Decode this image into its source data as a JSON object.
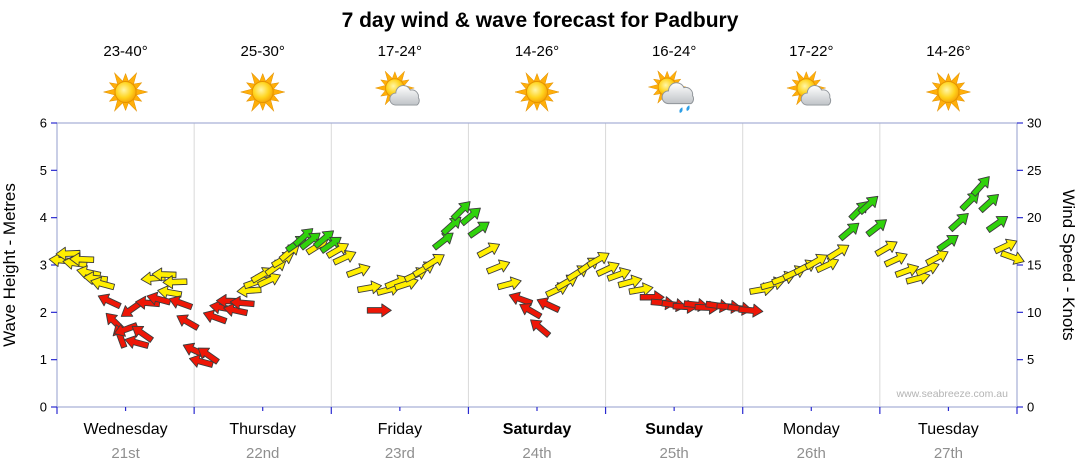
{
  "title": "7 day wind & wave forecast for Padbury",
  "watermark": "www.seabreeze.com.au",
  "days": [
    {
      "name": "Wednesday",
      "date": "21st",
      "temp": "23-40°",
      "icon": "sunny",
      "weekend": false
    },
    {
      "name": "Thursday",
      "date": "22nd",
      "temp": "25-30°",
      "icon": "sunny",
      "weekend": false
    },
    {
      "name": "Friday",
      "date": "23rd",
      "temp": "17-24°",
      "icon": "partly-cloudy",
      "weekend": false
    },
    {
      "name": "Saturday",
      "date": "24th",
      "temp": "14-26°",
      "icon": "sunny",
      "weekend": true
    },
    {
      "name": "Sunday",
      "date": "25th",
      "temp": "16-24°",
      "icon": "showers",
      "weekend": true
    },
    {
      "name": "Monday",
      "date": "26th",
      "temp": "17-22°",
      "icon": "partly-cloudy",
      "weekend": false
    },
    {
      "name": "Tuesday",
      "date": "27th",
      "temp": "14-26°",
      "icon": "sunny",
      "weekend": false
    }
  ],
  "chart_data": {
    "type": "scatter",
    "title": "7 day wind & wave forecast for Padbury",
    "x_categories": [
      "Wednesday 21st",
      "Thursday 22nd",
      "Friday 23rd",
      "Saturday 24th",
      "Sunday 25th",
      "Monday 26th",
      "Tuesday 27th"
    ],
    "y_left": {
      "label": "Wave Height - Metres",
      "range": [
        0,
        6
      ],
      "ticks": [
        0,
        1,
        2,
        3,
        4,
        5,
        6
      ]
    },
    "y_right": {
      "label": "Wind Speed - Knots",
      "range": [
        0,
        30
      ],
      "ticks": [
        0,
        5,
        10,
        15,
        20,
        25,
        30
      ]
    },
    "color_rules": {
      "red_max_knots": 11.9,
      "yellow_max_knots": 17.1,
      "red": "#ee1606",
      "yellow": "#ffee00",
      "green": "#30d20c",
      "outline": "#3c3c3c"
    },
    "series": [
      {
        "name": "Wind speed & direction arrows",
        "fields": [
          "day_offset",
          "knots",
          "arrow_rotation_deg"
        ],
        "points": [
          [
            0.03,
            15.5,
            185
          ],
          [
            0.08,
            16.2,
            178
          ],
          [
            0.13,
            15.2,
            188
          ],
          [
            0.18,
            15.6,
            182
          ],
          [
            0.23,
            14.2,
            192
          ],
          [
            0.28,
            13.6,
            186
          ],
          [
            0.33,
            13.0,
            195
          ],
          [
            0.38,
            11.2,
            205
          ],
          [
            0.42,
            9.0,
            225
          ],
          [
            0.46,
            7.5,
            250
          ],
          [
            0.5,
            8.2,
            160
          ],
          [
            0.54,
            10.3,
            145
          ],
          [
            0.58,
            6.8,
            195
          ],
          [
            0.62,
            7.8,
            215
          ],
          [
            0.66,
            11.0,
            185
          ],
          [
            0.7,
            13.6,
            175
          ],
          [
            0.74,
            11.4,
            195
          ],
          [
            0.78,
            14.0,
            182
          ],
          [
            0.82,
            12.1,
            190
          ],
          [
            0.86,
            13.2,
            178
          ],
          [
            0.9,
            11.0,
            200
          ],
          [
            0.95,
            9.0,
            210
          ],
          [
            1.0,
            6.0,
            205
          ],
          [
            1.05,
            4.8,
            195
          ],
          [
            1.1,
            5.5,
            215
          ],
          [
            1.15,
            9.5,
            200
          ],
          [
            1.2,
            10.5,
            190
          ],
          [
            1.25,
            11.2,
            182
          ],
          [
            1.3,
            10.2,
            192
          ],
          [
            1.35,
            11.0,
            185
          ],
          [
            1.4,
            12.3,
            176
          ],
          [
            1.45,
            13.2,
            340
          ],
          [
            1.5,
            14.0,
            330
          ],
          [
            1.55,
            13.4,
            335
          ],
          [
            1.6,
            14.8,
            325
          ],
          [
            1.65,
            15.6,
            330
          ],
          [
            1.7,
            16.4,
            320
          ],
          [
            1.75,
            17.3,
            325
          ],
          [
            1.8,
            18.0,
            318
          ],
          [
            1.85,
            17.6,
            322
          ],
          [
            1.9,
            17.0,
            328
          ],
          [
            1.95,
            17.8,
            320
          ],
          [
            2.0,
            17.2,
            325
          ],
          [
            2.05,
            16.6,
            330
          ],
          [
            2.1,
            15.8,
            335
          ],
          [
            2.2,
            14.4,
            340
          ],
          [
            2.28,
            12.6,
            350
          ],
          [
            2.35,
            10.2,
            0
          ],
          [
            2.42,
            12.4,
            345
          ],
          [
            2.48,
            13.2,
            338
          ],
          [
            2.55,
            13.0,
            342
          ],
          [
            2.62,
            14.0,
            335
          ],
          [
            2.68,
            14.6,
            330
          ],
          [
            2.75,
            15.4,
            328
          ],
          [
            2.82,
            17.6,
            322
          ],
          [
            2.88,
            19.2,
            318
          ],
          [
            2.95,
            20.8,
            315
          ],
          [
            3.02,
            20.2,
            320
          ],
          [
            3.08,
            18.8,
            325
          ],
          [
            3.15,
            16.6,
            332
          ],
          [
            3.22,
            14.8,
            338
          ],
          [
            3.3,
            13.0,
            345
          ],
          [
            3.38,
            11.4,
            200
          ],
          [
            3.45,
            10.2,
            210
          ],
          [
            3.52,
            8.4,
            220
          ],
          [
            3.58,
            10.8,
            205
          ],
          [
            3.65,
            12.4,
            335
          ],
          [
            3.72,
            13.2,
            330
          ],
          [
            3.8,
            14.2,
            328
          ],
          [
            3.88,
            15.0,
            325
          ],
          [
            3.95,
            15.6,
            330
          ],
          [
            4.02,
            14.6,
            335
          ],
          [
            4.1,
            14.0,
            340
          ],
          [
            4.18,
            13.2,
            345
          ],
          [
            4.26,
            12.4,
            350
          ],
          [
            4.34,
            11.6,
            0
          ],
          [
            4.42,
            11.0,
            5
          ],
          [
            4.5,
            10.8,
            8
          ],
          [
            4.58,
            10.6,
            3
          ],
          [
            4.66,
            10.8,
            6
          ],
          [
            4.74,
            10.5,
            2
          ],
          [
            4.82,
            10.7,
            8
          ],
          [
            4.9,
            10.6,
            4
          ],
          [
            4.98,
            10.4,
            7
          ],
          [
            5.06,
            10.2,
            5
          ],
          [
            5.14,
            12.4,
            350
          ],
          [
            5.22,
            13.0,
            345
          ],
          [
            5.3,
            13.6,
            340
          ],
          [
            5.38,
            14.2,
            335
          ],
          [
            5.46,
            14.8,
            332
          ],
          [
            5.54,
            15.4,
            330
          ],
          [
            5.62,
            15.0,
            335
          ],
          [
            5.7,
            16.4,
            328
          ],
          [
            5.78,
            18.6,
            320
          ],
          [
            5.85,
            20.8,
            315
          ],
          [
            5.92,
            21.4,
            318
          ],
          [
            5.98,
            19.0,
            322
          ],
          [
            6.05,
            16.8,
            330
          ],
          [
            6.12,
            15.6,
            335
          ],
          [
            6.2,
            14.4,
            340
          ],
          [
            6.28,
            13.6,
            345
          ],
          [
            6.35,
            14.6,
            338
          ],
          [
            6.42,
            15.8,
            332
          ],
          [
            6.5,
            17.4,
            325
          ],
          [
            6.58,
            19.6,
            318
          ],
          [
            6.66,
            21.8,
            315
          ],
          [
            6.74,
            23.4,
            312
          ],
          [
            6.8,
            21.6,
            318
          ],
          [
            6.86,
            19.4,
            325
          ],
          [
            6.92,
            17.0,
            335
          ],
          [
            6.97,
            15.8,
            20
          ]
        ]
      }
    ]
  }
}
